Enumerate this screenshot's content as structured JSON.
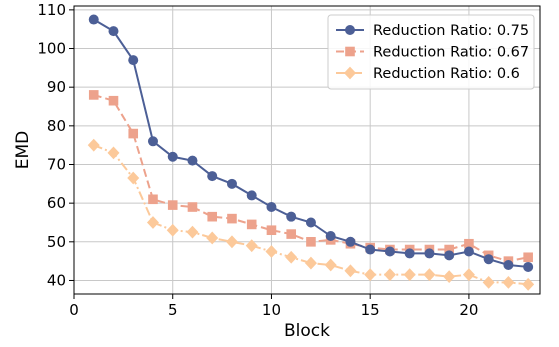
{
  "chart_data": {
    "type": "line",
    "title": "",
    "xlabel": "Block",
    "ylabel": "EMD",
    "xlim": [
      0,
      23.6
    ],
    "ylim": [
      36.5,
      111
    ],
    "xticks": [
      0,
      5,
      10,
      15,
      20
    ],
    "yticks": [
      40,
      50,
      60,
      70,
      80,
      90,
      100,
      110
    ],
    "grid": true,
    "legend_position": "top-right",
    "x": [
      1,
      2,
      3,
      4,
      5,
      6,
      7,
      8,
      9,
      10,
      11,
      12,
      13,
      14,
      15,
      16,
      17,
      18,
      19,
      20,
      21,
      22,
      23
    ],
    "series": [
      {
        "name": "Reduction Ratio: 0.75",
        "color": "#4c5f96",
        "linestyle": "solid",
        "marker": "circle",
        "values": [
          107.5,
          104.5,
          97.0,
          76.0,
          72.0,
          71.0,
          67.0,
          65.0,
          62.0,
          59.0,
          56.5,
          55.0,
          51.5,
          50.0,
          48.0,
          47.5,
          47.0,
          47.0,
          46.5,
          47.5,
          45.5,
          44.0,
          43.5
        ]
      },
      {
        "name": "Reduction Ratio: 0.67",
        "color": "#eda28c",
        "linestyle": "dashed",
        "marker": "square",
        "values": [
          88.0,
          86.5,
          78.0,
          61.0,
          59.5,
          59.0,
          56.5,
          56.0,
          54.5,
          53.0,
          52.0,
          50.0,
          50.5,
          49.5,
          48.5,
          48.0,
          48.0,
          48.0,
          48.0,
          49.5,
          46.5,
          45.0,
          46.0
        ]
      },
      {
        "name": "Reduction Ratio: 0.6",
        "color": "#fcc99a",
        "linestyle": "dashdot",
        "marker": "diamond",
        "values": [
          75.0,
          73.0,
          66.5,
          55.0,
          53.0,
          52.5,
          51.0,
          50.0,
          49.0,
          47.5,
          46.0,
          44.5,
          44.0,
          42.5,
          41.5,
          41.5,
          41.5,
          41.5,
          41.0,
          41.5,
          39.5,
          39.5,
          39.0
        ]
      }
    ]
  }
}
